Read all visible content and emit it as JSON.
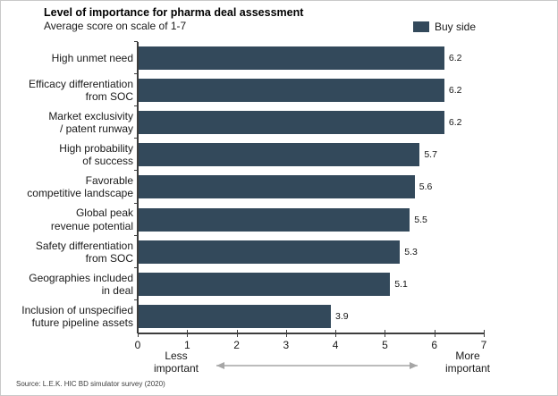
{
  "header": {
    "title": "Level of importance for pharma deal assessment",
    "subtitle": "Average score on scale of 1-7"
  },
  "legend": {
    "label": "Buy side",
    "swatch_color": "#33495B"
  },
  "footer": {
    "source": "Source: L.E.K. HIC BD simulator survey (2020)"
  },
  "chart_data": {
    "type": "bar",
    "orientation": "horizontal",
    "title": "Level of importance for pharma deal assessment",
    "subtitle": "Average score on scale of 1-7",
    "legend_entries": [
      "Buy side"
    ],
    "legend_position": "top-right",
    "categories": [
      "High unmet need",
      "Efficacy differentiation\nfrom SOC",
      "Market exclusivity\n/ patent runway",
      "High probability\nof success",
      "Favorable\ncompetitive landscape",
      "Global peak\nrevenue potential",
      "Safety differentiation\nfrom SOC",
      "Geographies included\nin deal",
      "Inclusion of unspecified\nfuture pipeline assets"
    ],
    "values": [
      6.2,
      6.2,
      6.2,
      5.7,
      5.6,
      5.5,
      5.3,
      5.1,
      3.9
    ],
    "value_labels": [
      "6.2",
      "6.2",
      "6.2",
      "5.7",
      "5.6",
      "5.5",
      "5.3",
      "5.1",
      "3.9"
    ],
    "xlim": [
      0,
      7
    ],
    "x_ticks": [
      "0",
      "1",
      "2",
      "3",
      "4",
      "5",
      "6",
      "7"
    ],
    "x_axis_annotation_left": "Less\nimportant",
    "x_axis_annotation_right": "More\nimportant",
    "bar_color": "#33495B",
    "arrow_color": "#a6a6a6",
    "grid": "off"
  }
}
